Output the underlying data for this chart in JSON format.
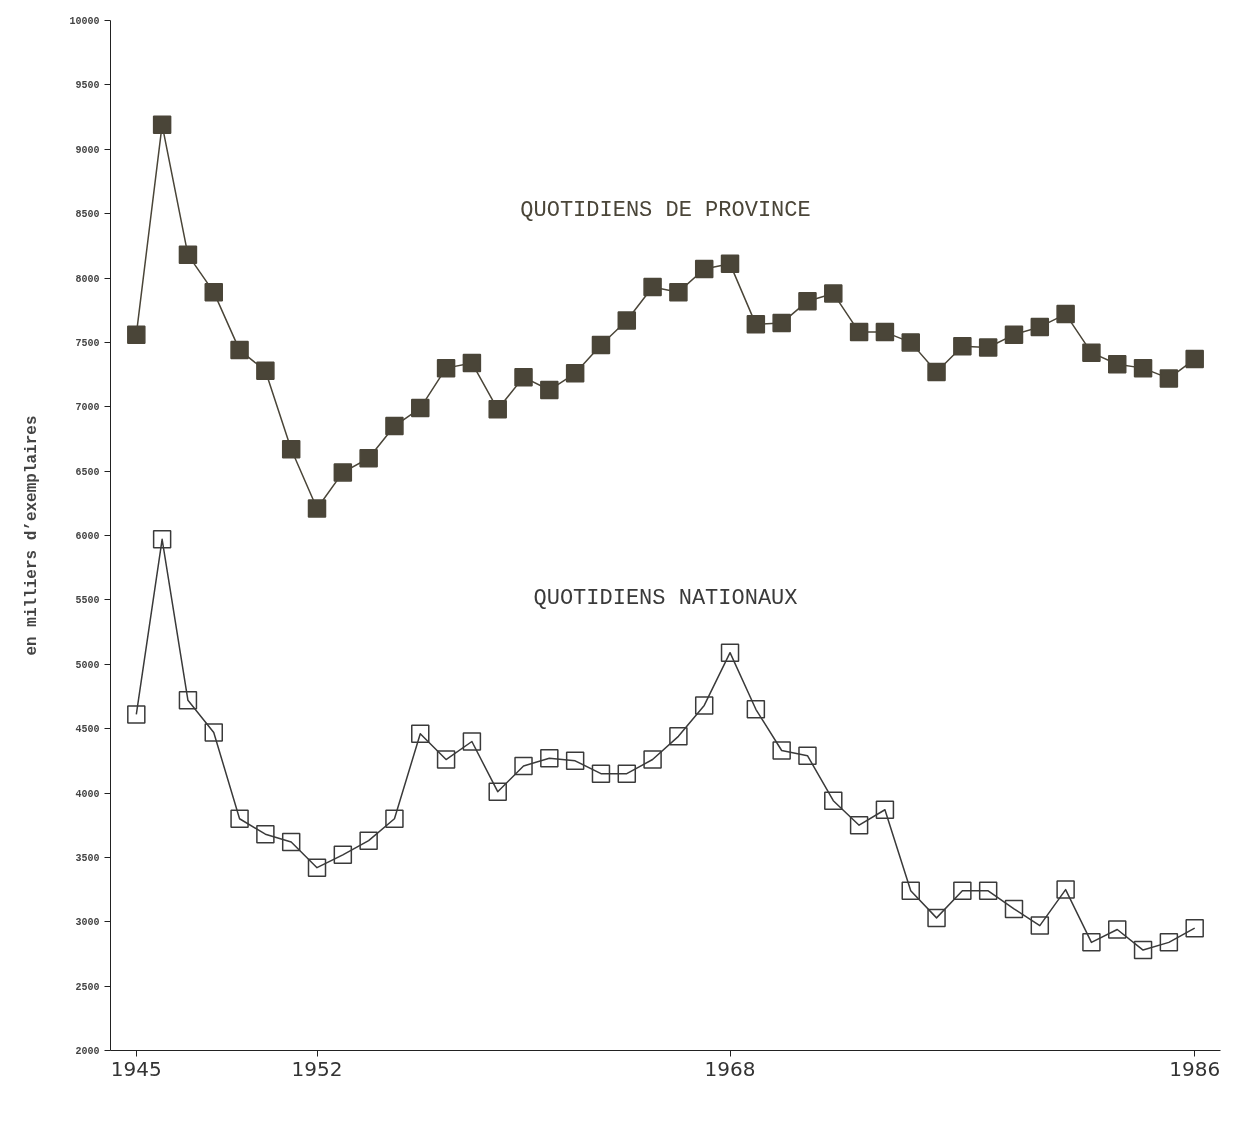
{
  "chart_data": {
    "type": "line",
    "ylabel": "en milliers d’exemplaires",
    "x": [
      1945,
      1946,
      1947,
      1948,
      1949,
      1950,
      1951,
      1952,
      1953,
      1954,
      1955,
      1956,
      1957,
      1958,
      1959,
      1960,
      1961,
      1962,
      1963,
      1964,
      1965,
      1966,
      1967,
      1968,
      1969,
      1970,
      1971,
      1972,
      1973,
      1974,
      1975,
      1976,
      1977,
      1978,
      1979,
      1980,
      1981,
      1982,
      1983,
      1984,
      1985,
      1986
    ],
    "series": [
      {
        "name": "QUOTIDIENS DE PROVINCE",
        "color": "#4a4538",
        "marker": "square",
        "values": [
          7560,
          9190,
          8180,
          7890,
          7440,
          7280,
          6670,
          6210,
          6490,
          6600,
          6850,
          6990,
          7300,
          7340,
          6980,
          7230,
          7130,
          7260,
          7480,
          7670,
          7930,
          7890,
          8070,
          8110,
          7640,
          7650,
          7820,
          7880,
          7580,
          7580,
          7500,
          7270,
          7470,
          7460,
          7560,
          7620,
          7720,
          7420,
          7330,
          7300,
          7220,
          7370
        ]
      },
      {
        "name": "QUOTIDIENS NATIONAUX",
        "color": "#3a3a3a",
        "marker": "square_open",
        "values": [
          4610,
          5970,
          4720,
          4470,
          3800,
          3680,
          3620,
          3420,
          3520,
          3630,
          3800,
          4460,
          4260,
          4400,
          4010,
          4210,
          4270,
          4250,
          4150,
          4150,
          4260,
          4440,
          4680,
          5090,
          4650,
          4330,
          4290,
          3940,
          3750,
          3870,
          3240,
          3030,
          3240,
          3240,
          3100,
          2970,
          3250,
          2840,
          2940,
          2780,
          2840,
          2950
        ]
      }
    ],
    "xlim": [
      1944,
      1987
    ],
    "xticks": [
      1945,
      1952,
      1968,
      1986
    ],
    "ylim": [
      2000,
      10000
    ],
    "yticks": [
      2000,
      2500,
      3000,
      3500,
      4000,
      4500,
      5000,
      5500,
      6000,
      6500,
      7000,
      7500,
      8000,
      8500,
      9000,
      9500,
      10000
    ],
    "line_style": "solid",
    "grid": false,
    "legend": false
  }
}
